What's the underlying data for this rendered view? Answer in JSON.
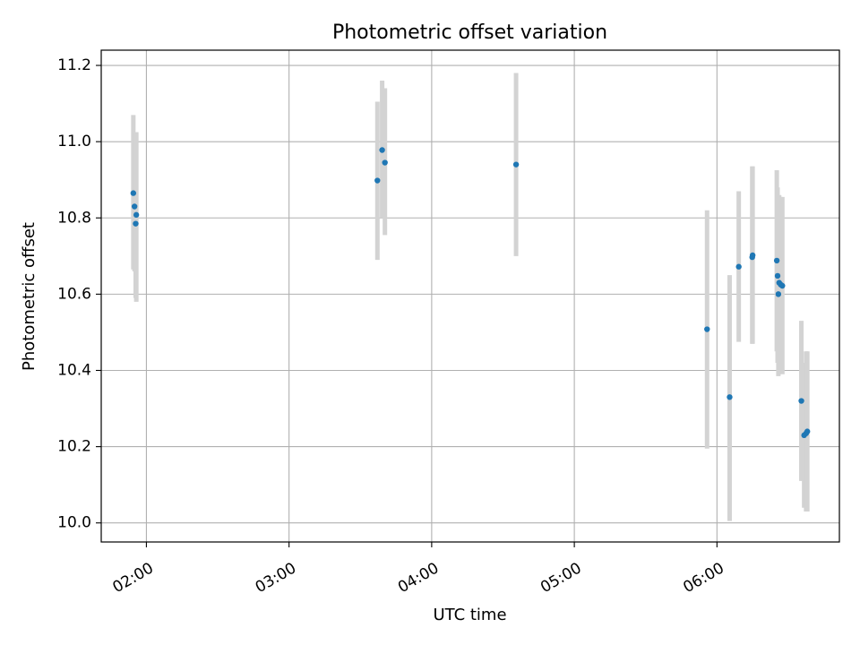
{
  "chart_data": {
    "type": "scatter",
    "title": "Photometric offset variation",
    "xlabel": "UTC time",
    "ylabel": "Photometric offset",
    "x_is_time": true,
    "xlim": [
      "01:41:00",
      "06:51:30"
    ],
    "ylim": [
      9.95,
      11.24
    ],
    "xticks": [
      {
        "value": "02:00:00",
        "label": "02:00"
      },
      {
        "value": "03:00:00",
        "label": "03:00"
      },
      {
        "value": "04:00:00",
        "label": "04:00"
      },
      {
        "value": "05:00:00",
        "label": "05:00"
      },
      {
        "value": "06:00:00",
        "label": "06:00"
      }
    ],
    "yticks": [
      {
        "value": 10.0,
        "label": "10.0"
      },
      {
        "value": 10.2,
        "label": "10.2"
      },
      {
        "value": 10.4,
        "label": "10.4"
      },
      {
        "value": 10.6,
        "label": "10.6"
      },
      {
        "value": 10.8,
        "label": "10.8"
      },
      {
        "value": 11.0,
        "label": "11.0"
      },
      {
        "value": 11.2,
        "label": "11.2"
      }
    ],
    "grid": true,
    "marker_color": "#1f77b4",
    "errorbar_color": "#d3d3d3",
    "points": [
      {
        "t": "01:54:30",
        "y": 10.865,
        "lo": 10.665,
        "hi": 11.07
      },
      {
        "t": "01:55:00",
        "y": 10.83,
        "lo": 10.66,
        "hi": 11.0
      },
      {
        "t": "01:55:30",
        "y": 10.785,
        "lo": 10.59,
        "hi": 10.98
      },
      {
        "t": "01:55:45",
        "y": 10.808,
        "lo": 10.58,
        "hi": 11.025
      },
      {
        "t": "03:37:10",
        "y": 10.898,
        "lo": 10.69,
        "hi": 11.105
      },
      {
        "t": "03:39:10",
        "y": 10.978,
        "lo": 10.8,
        "hi": 11.16
      },
      {
        "t": "03:40:20",
        "y": 10.945,
        "lo": 10.755,
        "hi": 11.14
      },
      {
        "t": "04:35:30",
        "y": 10.94,
        "lo": 10.7,
        "hi": 11.18
      },
      {
        "t": "05:55:50",
        "y": 10.508,
        "lo": 10.195,
        "hi": 10.82
      },
      {
        "t": "06:05:20",
        "y": 10.33,
        "lo": 10.005,
        "hi": 10.65
      },
      {
        "t": "06:09:10",
        "y": 10.672,
        "lo": 10.475,
        "hi": 10.87
      },
      {
        "t": "06:14:50",
        "y": 10.697,
        "lo": 10.47,
        "hi": 10.935
      },
      {
        "t": "06:15:00",
        "y": 10.702,
        "lo": 10.47,
        "hi": 10.935
      },
      {
        "t": "06:25:10",
        "y": 10.688,
        "lo": 10.45,
        "hi": 10.925
      },
      {
        "t": "06:25:30",
        "y": 10.648,
        "lo": 10.42,
        "hi": 10.88
      },
      {
        "t": "06:25:50",
        "y": 10.6,
        "lo": 10.385,
        "hi": 10.82
      },
      {
        "t": "06:26:10",
        "y": 10.63,
        "lo": 10.4,
        "hi": 10.86
      },
      {
        "t": "06:26:50",
        "y": 10.625,
        "lo": 10.395,
        "hi": 10.855
      },
      {
        "t": "06:27:30",
        "y": 10.622,
        "lo": 10.39,
        "hi": 10.855
      },
      {
        "t": "06:35:30",
        "y": 10.32,
        "lo": 10.11,
        "hi": 10.53
      },
      {
        "t": "06:36:40",
        "y": 10.23,
        "lo": 10.04,
        "hi": 10.42
      },
      {
        "t": "06:37:30",
        "y": 10.235,
        "lo": 10.03,
        "hi": 10.45
      },
      {
        "t": "06:38:00",
        "y": 10.24,
        "lo": 10.03,
        "hi": 10.45
      }
    ]
  }
}
